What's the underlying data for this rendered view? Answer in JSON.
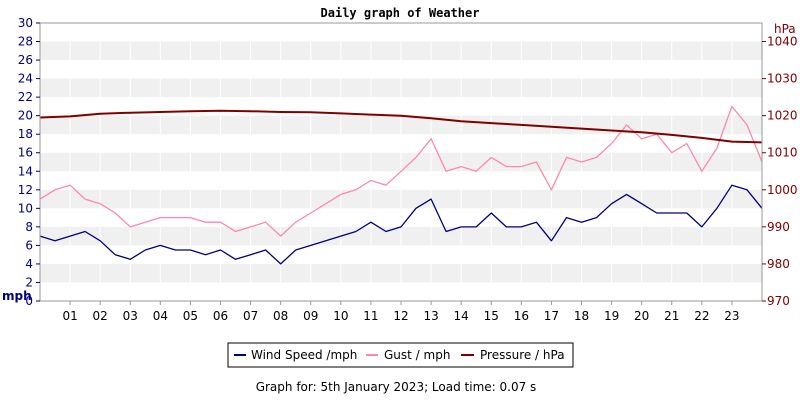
{
  "chart_data": {
    "type": "line",
    "title": "Daily graph of Weather",
    "footer": "Graph for: 5th January 2023; Load time: 0.07 s",
    "left_axis": {
      "unit_label": "mph",
      "range": [
        0,
        30
      ],
      "ticks": [
        "0",
        "2",
        "4",
        "6",
        "8",
        "10",
        "12",
        "14",
        "16",
        "18",
        "20",
        "22",
        "24",
        "26",
        "28",
        "30"
      ]
    },
    "right_axis": {
      "unit_label": "hPa",
      "range": [
        970,
        1045
      ],
      "ticks": [
        "970",
        "980",
        "990",
        "1000",
        "1010",
        "1020",
        "1030",
        "1040"
      ]
    },
    "x_axis": {
      "range": [
        0,
        24
      ],
      "ticks": [
        "01",
        "02",
        "03",
        "04",
        "05",
        "06",
        "07",
        "08",
        "09",
        "10",
        "11",
        "12",
        "13",
        "14",
        "15",
        "16",
        "17",
        "18",
        "19",
        "20",
        "21",
        "22",
        "23"
      ]
    },
    "grid": true,
    "legend_placement": "bottom-center",
    "legend": [
      "Wind Speed /mph",
      "Gust / mph",
      "Pressure / hPa"
    ],
    "colors": {
      "wind": "#000080",
      "gust": "#ff88aa",
      "pressure": "#800000",
      "band": "#f0f0f0",
      "axis": "#999999"
    },
    "series": [
      {
        "name": "Wind Speed /mph",
        "axis": "left",
        "x": [
          0.0,
          0.5,
          1.0,
          1.5,
          2.0,
          2.5,
          3.0,
          3.5,
          4.0,
          4.5,
          5.0,
          5.5,
          6.0,
          6.5,
          7.0,
          7.5,
          8.0,
          8.5,
          9.0,
          9.5,
          10.0,
          10.5,
          11.0,
          11.5,
          12.0,
          12.5,
          13.0,
          13.5,
          14.0,
          14.5,
          15.0,
          15.5,
          16.0,
          16.5,
          17.0,
          17.5,
          18.0,
          18.5,
          19.0,
          19.5,
          20.0,
          20.5,
          21.0,
          21.5,
          22.0,
          22.5,
          23.0,
          23.5,
          24.0
        ],
        "values": [
          7,
          6.5,
          7,
          7.5,
          6.5,
          5,
          4.5,
          5.5,
          6,
          5.5,
          5.5,
          5,
          5.5,
          4.5,
          5,
          5.5,
          4,
          5.5,
          6,
          6.5,
          7,
          7.5,
          8.5,
          7.5,
          8,
          10,
          11,
          7.5,
          8,
          8,
          9.5,
          8,
          8,
          8.5,
          6.5,
          9,
          8.5,
          9,
          10.5,
          11.5,
          10.5,
          9.5,
          9.5,
          9.5,
          8,
          10,
          12.5,
          12,
          10
        ]
      },
      {
        "name": "Gust / mph",
        "axis": "left",
        "x": [
          0.0,
          0.5,
          1.0,
          1.5,
          2.0,
          2.5,
          3.0,
          3.5,
          4.0,
          4.5,
          5.0,
          5.5,
          6.0,
          6.5,
          7.0,
          7.5,
          8.0,
          8.5,
          9.0,
          9.5,
          10.0,
          10.5,
          11.0,
          11.5,
          12.0,
          12.5,
          13.0,
          13.5,
          14.0,
          14.5,
          15.0,
          15.5,
          16.0,
          16.5,
          17.0,
          17.5,
          18.0,
          18.5,
          19.0,
          19.5,
          20.0,
          20.5,
          21.0,
          21.5,
          22.0,
          22.5,
          23.0,
          23.5,
          24.0
        ],
        "values": [
          11,
          12,
          12.5,
          11,
          10.5,
          9.5,
          8,
          8.5,
          9,
          9,
          9,
          8.5,
          8.5,
          7.5,
          8,
          8.5,
          7,
          8.5,
          9.5,
          10.5,
          11.5,
          12,
          13,
          12.5,
          14,
          15.5,
          17.5,
          14,
          14.5,
          14,
          15.5,
          14.5,
          14.5,
          15,
          12,
          15.5,
          15,
          15.5,
          17,
          19,
          17.5,
          18,
          16,
          17,
          14,
          16.5,
          21,
          19,
          15
        ]
      },
      {
        "name": "Pressure / hPa",
        "axis": "right",
        "x": [
          0,
          1,
          2,
          3,
          4,
          5,
          6,
          7,
          8,
          9,
          10,
          11,
          12,
          13,
          14,
          15,
          16,
          17,
          18,
          19,
          20,
          21,
          22,
          23,
          24
        ],
        "values": [
          1019.5,
          1019.8,
          1020.5,
          1020.8,
          1021.0,
          1021.2,
          1021.3,
          1021.2,
          1021.0,
          1020.9,
          1020.6,
          1020.3,
          1020.0,
          1019.3,
          1018.5,
          1018.0,
          1017.5,
          1017.0,
          1016.5,
          1016.0,
          1015.5,
          1014.8,
          1014.0,
          1013.0,
          1012.8
        ]
      }
    ]
  }
}
